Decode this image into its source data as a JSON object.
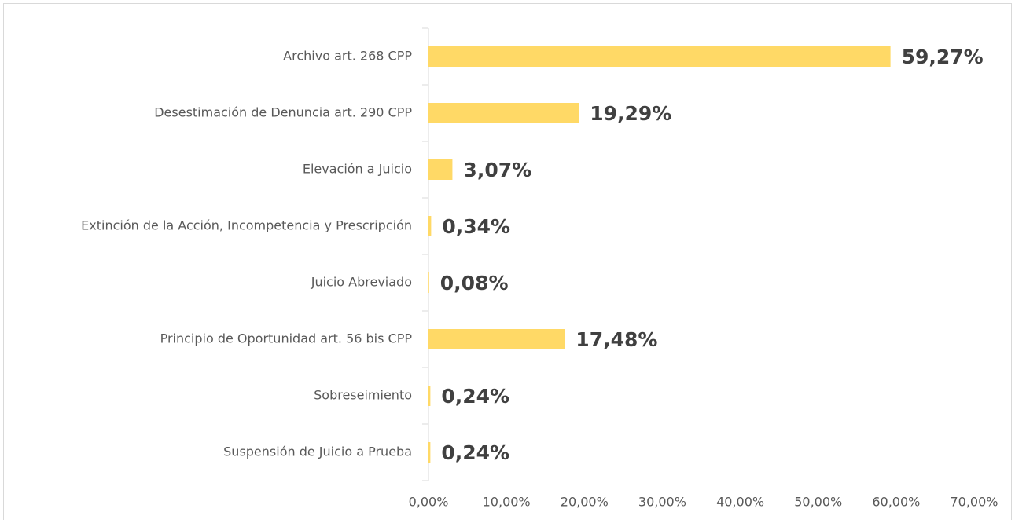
{
  "chart_data": {
    "type": "bar",
    "orientation": "horizontal",
    "categories": [
      "Archivo art. 268 CPP",
      "Desestimación de Denuncia art. 290 CPP",
      "Elevación a Juicio",
      "Extinción de la Acción, Incompetencia y Prescripción",
      "Juicio Abreviado",
      "Principio de Oportunidad art. 56 bis CPP",
      "Sobreseimiento",
      "Suspensión de Juicio a Prueba"
    ],
    "values": [
      59.27,
      19.29,
      3.07,
      0.34,
      0.08,
      17.48,
      0.24,
      0.24
    ],
    "value_labels": [
      "59,27%",
      "19,29%",
      "3,07%",
      "0,34%",
      "0,08%",
      "17,48%",
      "0,24%",
      "0,24%"
    ],
    "color": "#FFD966",
    "xlim": [
      0,
      70
    ],
    "xticks": [
      {
        "value": 0,
        "label": "0,00%"
      },
      {
        "value": 10,
        "label": "10,00%"
      },
      {
        "value": 20,
        "label": "20,00%"
      },
      {
        "value": 30,
        "label": "30,00%"
      },
      {
        "value": 40,
        "label": "40,00%"
      },
      {
        "value": 50,
        "label": "50,00%"
      },
      {
        "value": 60,
        "label": "60,00%"
      },
      {
        "value": 70,
        "label": "70,00%"
      }
    ],
    "grid": false
  }
}
